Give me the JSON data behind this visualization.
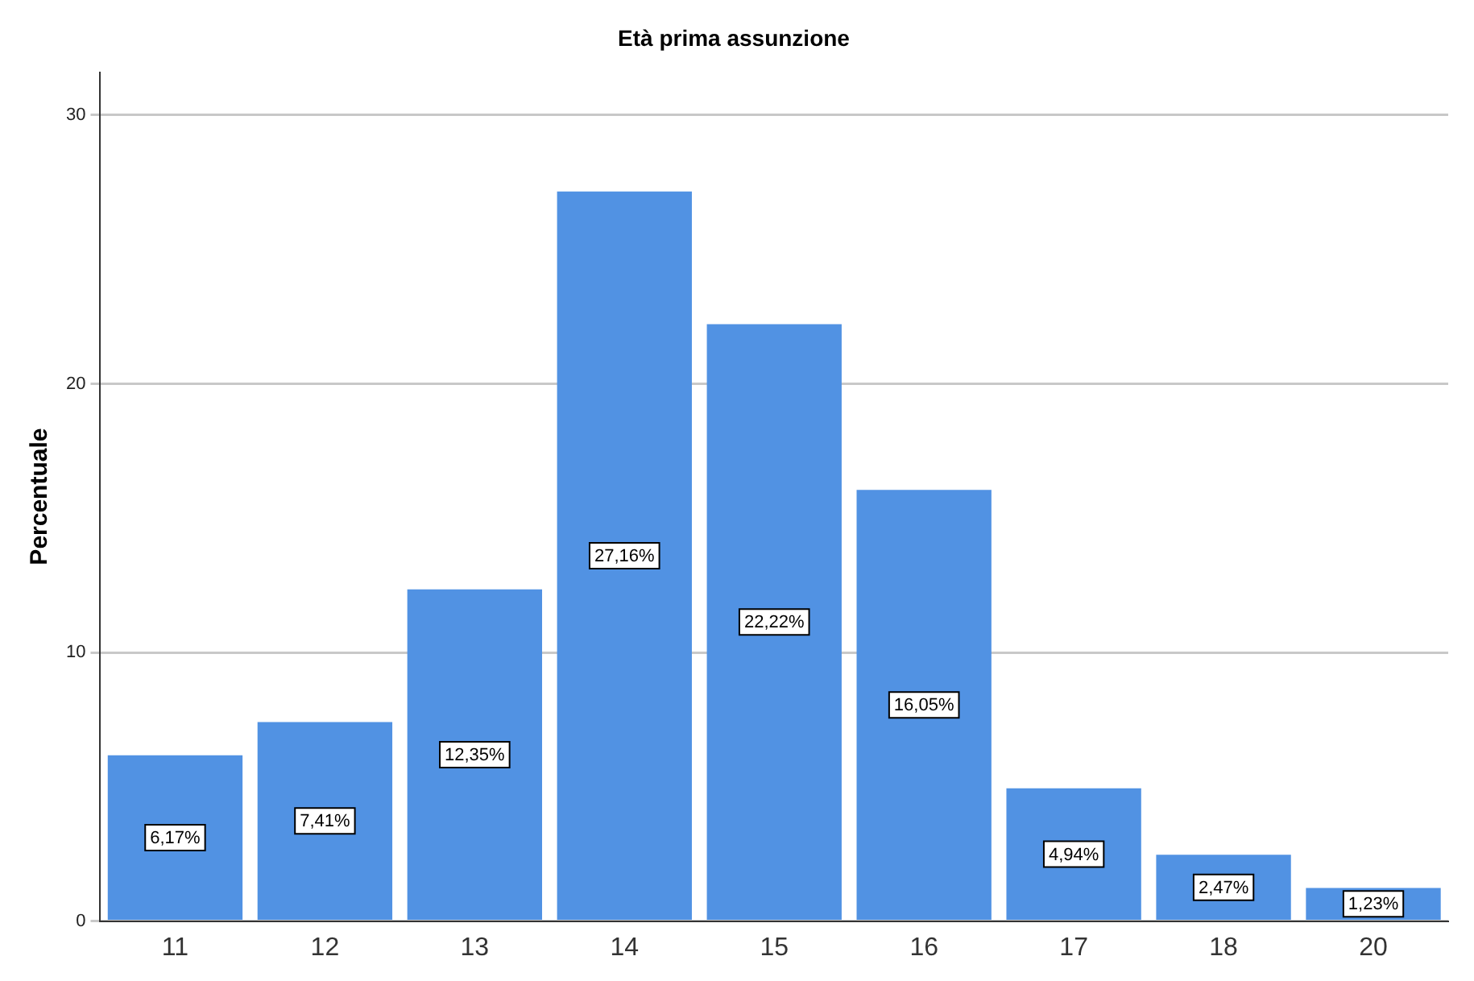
{
  "chart_data": {
    "type": "bar",
    "title": "Età prima assunzione",
    "ylabel": "Percentuale",
    "categories": [
      "11",
      "12",
      "13",
      "14",
      "15",
      "16",
      "17",
      "18",
      "20"
    ],
    "values": [
      6.17,
      7.41,
      12.35,
      27.16,
      22.22,
      16.05,
      4.94,
      2.47,
      1.23
    ],
    "value_labels": [
      "6,17%",
      "7,41%",
      "12,35%",
      "27,16%",
      "22,22%",
      "16,05%",
      "4,94%",
      "2,47%",
      "1,23%"
    ],
    "color": "#5192e3",
    "ylim": [
      0,
      31.6
    ],
    "yticks": [
      0,
      10,
      20,
      30
    ],
    "grid": "y",
    "legend": false
  }
}
